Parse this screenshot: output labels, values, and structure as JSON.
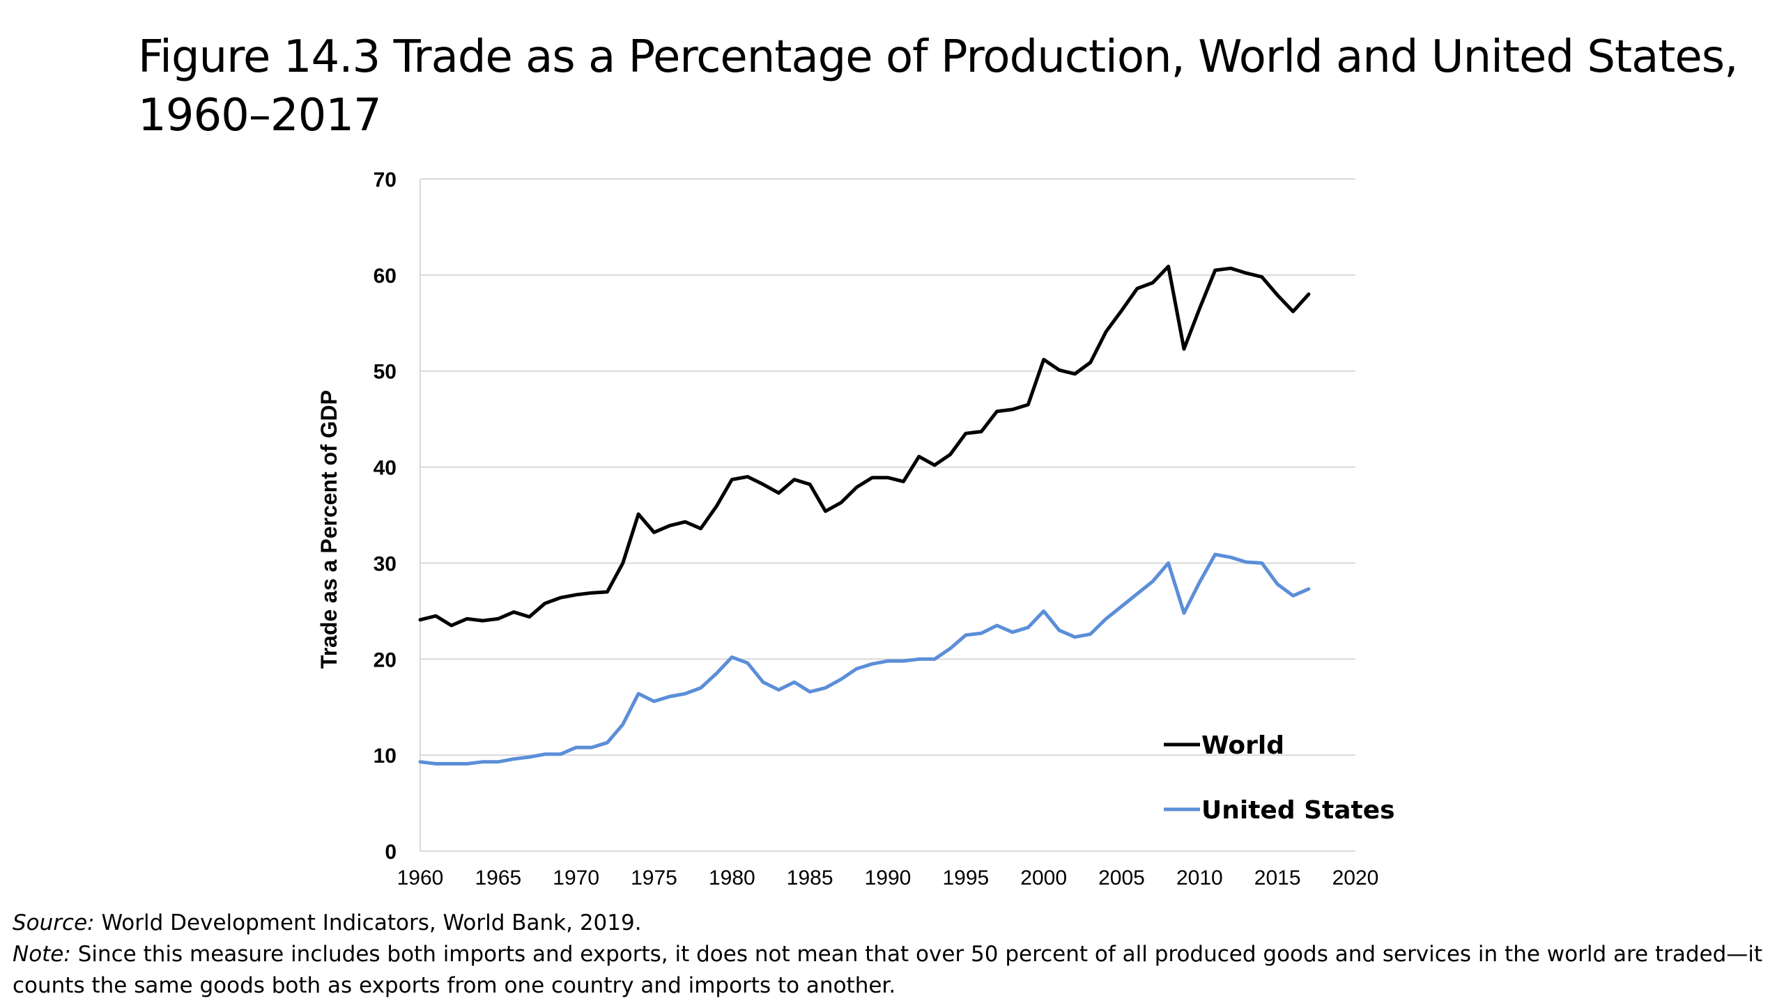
{
  "title": "Figure 14.3 Trade as a Percentage of Production, World and United States, 1960–2017",
  "source_label": "Source:",
  "source_text": "World Development Indicators, World Bank, 2019.",
  "note_label": "Note:",
  "note_text": "Since this measure includes both imports and exports, it does not mean that over 50 percent of all produced goods and services in the world are traded—it counts the same goods both as exports from one country and imports to another.",
  "chart_data": {
    "type": "line",
    "title": "Figure 14.3 Trade as a Percentage of Production, World and United States, 1960–2017",
    "xlabel": "",
    "ylabel": "Trade as a Percent of GDP",
    "xlim": [
      1960,
      2020
    ],
    "ylim": [
      0,
      70
    ],
    "xticks": [
      1960,
      1965,
      1970,
      1975,
      1980,
      1985,
      1990,
      1995,
      2000,
      2005,
      2010,
      2015,
      2020
    ],
    "yticks": [
      0,
      10,
      20,
      30,
      40,
      50,
      60,
      70
    ],
    "grid": "horizontal",
    "legend_position": "bottom-right",
    "x": [
      1960,
      1961,
      1962,
      1963,
      1964,
      1965,
      1966,
      1967,
      1968,
      1969,
      1970,
      1971,
      1972,
      1973,
      1974,
      1975,
      1976,
      1977,
      1978,
      1979,
      1980,
      1981,
      1982,
      1983,
      1984,
      1985,
      1986,
      1987,
      1988,
      1989,
      1990,
      1991,
      1992,
      1993,
      1994,
      1995,
      1996,
      1997,
      1998,
      1999,
      2000,
      2001,
      2002,
      2003,
      2004,
      2005,
      2006,
      2007,
      2008,
      2009,
      2010,
      2011,
      2012,
      2013,
      2014,
      2015,
      2016,
      2017
    ],
    "series": [
      {
        "name": "World",
        "color": "#000000",
        "values": [
          24.1,
          24.5,
          23.5,
          24.2,
          24.0,
          24.2,
          24.9,
          24.4,
          25.8,
          26.4,
          26.7,
          26.9,
          27.0,
          30.0,
          35.1,
          33.2,
          33.9,
          34.3,
          33.6,
          35.9,
          38.7,
          39.0,
          38.2,
          37.3,
          38.7,
          38.2,
          35.4,
          36.3,
          37.9,
          38.9,
          38.9,
          38.5,
          41.1,
          40.2,
          41.3,
          43.5,
          43.7,
          45.8,
          46.0,
          46.5,
          51.2,
          50.1,
          49.7,
          50.9,
          54.1,
          56.3,
          58.6,
          59.2,
          60.9,
          52.3,
          56.5,
          60.5,
          60.7,
          60.2,
          59.8,
          57.9,
          56.2,
          58.0
        ]
      },
      {
        "name": "United States",
        "color": "#5B8ED8",
        "values": [
          9.3,
          9.1,
          9.1,
          9.1,
          9.3,
          9.3,
          9.6,
          9.8,
          10.1,
          10.1,
          10.8,
          10.8,
          11.3,
          13.2,
          16.4,
          15.6,
          16.1,
          16.4,
          17.0,
          18.5,
          20.2,
          19.6,
          17.6,
          16.8,
          17.6,
          16.6,
          17.0,
          17.9,
          19.0,
          19.5,
          19.8,
          19.8,
          20.0,
          20.0,
          21.1,
          22.5,
          22.7,
          23.5,
          22.8,
          23.3,
          25.0,
          23.0,
          22.3,
          22.6,
          24.2,
          25.5,
          26.8,
          28.1,
          30.0,
          24.8,
          28.0,
          30.9,
          30.6,
          30.1,
          30.0,
          27.8,
          26.6,
          27.3
        ]
      }
    ]
  }
}
